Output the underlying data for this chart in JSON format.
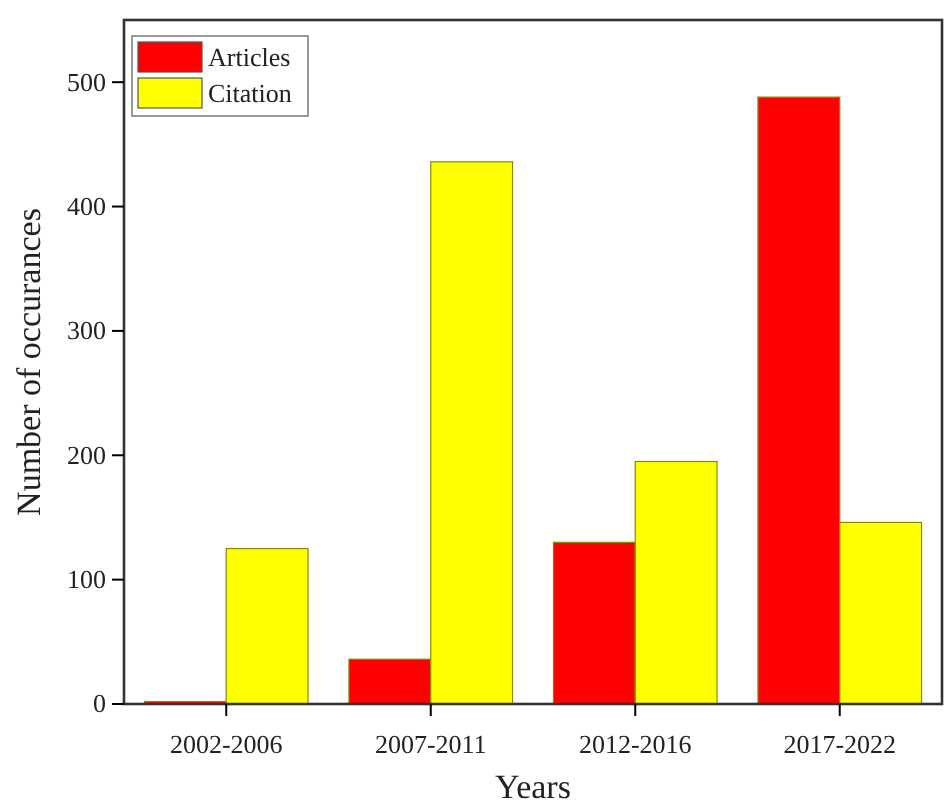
{
  "chart_data": {
    "type": "bar",
    "xlabel": "Years",
    "ylabel": "Number of occurances",
    "categories": [
      "2002-2006",
      "2007-2011",
      "2012-2016",
      "2017-2022"
    ],
    "series": [
      {
        "name": "Articles",
        "color": "#ff0000",
        "values": [
          2,
          36,
          130,
          488
        ]
      },
      {
        "name": "Citation",
        "color": "#ffff00",
        "values": [
          125,
          436,
          195,
          146
        ]
      }
    ],
    "ylim": [
      0,
      550
    ],
    "yticks": [
      0,
      100,
      200,
      300,
      400,
      500
    ],
    "grid": false,
    "legend": "top left"
  }
}
